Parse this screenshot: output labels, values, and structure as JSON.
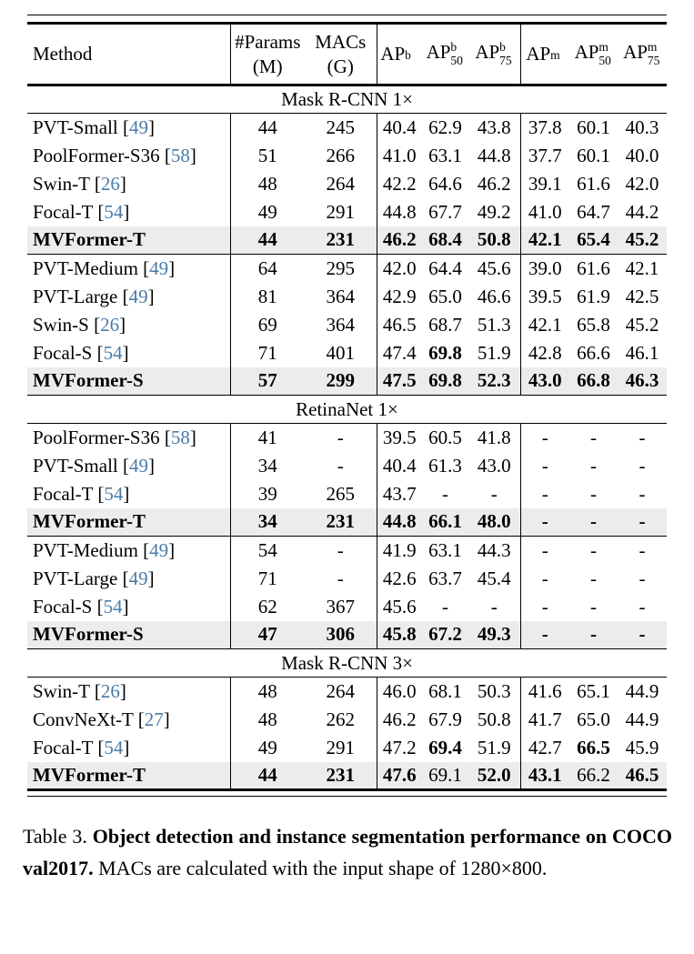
{
  "colors": {
    "citation_blue": "#4a7ba6",
    "highlight_bg": "#ececec",
    "text": "#000000"
  },
  "table": {
    "header": {
      "method": "Method",
      "params_line1": "#Params",
      "params_line2": "(M)",
      "macs_line1": "MACs",
      "macs_line2": "(G)",
      "ap_cols": [
        {
          "base": "AP",
          "sup": "b",
          "sub": ""
        },
        {
          "base": "AP",
          "sup": "b",
          "sub": "50"
        },
        {
          "base": "AP",
          "sup": "b",
          "sub": "75"
        },
        {
          "base": "AP",
          "sup": "m",
          "sub": ""
        },
        {
          "base": "AP",
          "sup": "m",
          "sub": "50"
        },
        {
          "base": "AP",
          "sup": "m",
          "sub": "75"
        }
      ]
    },
    "sections": [
      {
        "title": "Mask R-CNN 1×",
        "groups": [
          {
            "rows": [
              {
                "method": "PVT-Small",
                "ref": "49",
                "shaded": false,
                "bold_method": false,
                "values": [
                  "44",
                  "245",
                  "40.4",
                  "62.9",
                  "43.8",
                  "37.8",
                  "60.1",
                  "40.3"
                ],
                "bold": [
                  0,
                  0,
                  0,
                  0,
                  0,
                  0,
                  0,
                  0
                ]
              },
              {
                "method": "PoolFormer-S36",
                "ref": "58",
                "shaded": false,
                "bold_method": false,
                "values": [
                  "51",
                  "266",
                  "41.0",
                  "63.1",
                  "44.8",
                  "37.7",
                  "60.1",
                  "40.0"
                ],
                "bold": [
                  0,
                  0,
                  0,
                  0,
                  0,
                  0,
                  0,
                  0
                ]
              },
              {
                "method": "Swin-T",
                "ref": "26",
                "shaded": false,
                "bold_method": false,
                "values": [
                  "48",
                  "264",
                  "42.2",
                  "64.6",
                  "46.2",
                  "39.1",
                  "61.6",
                  "42.0"
                ],
                "bold": [
                  0,
                  0,
                  0,
                  0,
                  0,
                  0,
                  0,
                  0
                ]
              },
              {
                "method": "Focal-T",
                "ref": "54",
                "shaded": false,
                "bold_method": false,
                "values": [
                  "49",
                  "291",
                  "44.8",
                  "67.7",
                  "49.2",
                  "41.0",
                  "64.7",
                  "44.2"
                ],
                "bold": [
                  0,
                  0,
                  0,
                  0,
                  0,
                  0,
                  0,
                  0
                ]
              },
              {
                "method": "MVFormer-T",
                "ref": "",
                "shaded": true,
                "bold_method": true,
                "values": [
                  "44",
                  "231",
                  "46.2",
                  "68.4",
                  "50.8",
                  "42.1",
                  "65.4",
                  "45.2"
                ],
                "bold": [
                  1,
                  1,
                  1,
                  1,
                  1,
                  1,
                  1,
                  1
                ]
              }
            ]
          },
          {
            "rows": [
              {
                "method": "PVT-Medium",
                "ref": "49",
                "shaded": false,
                "bold_method": false,
                "values": [
                  "64",
                  "295",
                  "42.0",
                  "64.4",
                  "45.6",
                  "39.0",
                  "61.6",
                  "42.1"
                ],
                "bold": [
                  0,
                  0,
                  0,
                  0,
                  0,
                  0,
                  0,
                  0
                ]
              },
              {
                "method": "PVT-Large",
                "ref": "49",
                "shaded": false,
                "bold_method": false,
                "values": [
                  "81",
                  "364",
                  "42.9",
                  "65.0",
                  "46.6",
                  "39.5",
                  "61.9",
                  "42.5"
                ],
                "bold": [
                  0,
                  0,
                  0,
                  0,
                  0,
                  0,
                  0,
                  0
                ]
              },
              {
                "method": "Swin-S",
                "ref": "26",
                "shaded": false,
                "bold_method": false,
                "values": [
                  "69",
                  "364",
                  "46.5",
                  "68.7",
                  "51.3",
                  "42.1",
                  "65.8",
                  "45.2"
                ],
                "bold": [
                  0,
                  0,
                  0,
                  0,
                  0,
                  0,
                  0,
                  0
                ]
              },
              {
                "method": "Focal-S",
                "ref": "54",
                "shaded": false,
                "bold_method": false,
                "values": [
                  "71",
                  "401",
                  "47.4",
                  "69.8",
                  "51.9",
                  "42.8",
                  "66.6",
                  "46.1"
                ],
                "bold": [
                  0,
                  0,
                  0,
                  1,
                  0,
                  0,
                  0,
                  0
                ]
              },
              {
                "method": "MVFormer-S",
                "ref": "",
                "shaded": true,
                "bold_method": true,
                "values": [
                  "57",
                  "299",
                  "47.5",
                  "69.8",
                  "52.3",
                  "43.0",
                  "66.8",
                  "46.3"
                ],
                "bold": [
                  1,
                  1,
                  1,
                  1,
                  1,
                  1,
                  1,
                  1
                ]
              }
            ]
          }
        ]
      },
      {
        "title": "RetinaNet 1×",
        "groups": [
          {
            "rows": [
              {
                "method": "PoolFormer-S36",
                "ref": "58",
                "shaded": false,
                "bold_method": false,
                "values": [
                  "41",
                  "-",
                  "39.5",
                  "60.5",
                  "41.8",
                  "-",
                  "-",
                  "-"
                ],
                "bold": [
                  0,
                  0,
                  0,
                  0,
                  0,
                  0,
                  0,
                  0
                ]
              },
              {
                "method": "PVT-Small",
                "ref": "49",
                "shaded": false,
                "bold_method": false,
                "values": [
                  "34",
                  "-",
                  "40.4",
                  "61.3",
                  "43.0",
                  "-",
                  "-",
                  "-"
                ],
                "bold": [
                  0,
                  0,
                  0,
                  0,
                  0,
                  0,
                  0,
                  0
                ]
              },
              {
                "method": "Focal-T",
                "ref": "54",
                "shaded": false,
                "bold_method": false,
                "values": [
                  "39",
                  "265",
                  "43.7",
                  "-",
                  "-",
                  "-",
                  "-",
                  "-"
                ],
                "bold": [
                  0,
                  0,
                  0,
                  0,
                  0,
                  0,
                  0,
                  0
                ]
              },
              {
                "method": "MVFormer-T",
                "ref": "",
                "shaded": true,
                "bold_method": true,
                "values": [
                  "34",
                  "231",
                  "44.8",
                  "66.1",
                  "48.0",
                  "-",
                  "-",
                  "-"
                ],
                "bold": [
                  1,
                  1,
                  1,
                  1,
                  1,
                  1,
                  1,
                  1
                ]
              }
            ]
          },
          {
            "rows": [
              {
                "method": "PVT-Medium",
                "ref": "49",
                "shaded": false,
                "bold_method": false,
                "values": [
                  "54",
                  "-",
                  "41.9",
                  "63.1",
                  "44.3",
                  "-",
                  "-",
                  "-"
                ],
                "bold": [
                  0,
                  0,
                  0,
                  0,
                  0,
                  0,
                  0,
                  0
                ]
              },
              {
                "method": "PVT-Large",
                "ref": "49",
                "shaded": false,
                "bold_method": false,
                "values": [
                  "71",
                  "-",
                  "42.6",
                  "63.7",
                  "45.4",
                  "-",
                  "-",
                  "-"
                ],
                "bold": [
                  0,
                  0,
                  0,
                  0,
                  0,
                  0,
                  0,
                  0
                ]
              },
              {
                "method": "Focal-S",
                "ref": "54",
                "shaded": false,
                "bold_method": false,
                "values": [
                  "62",
                  "367",
                  "45.6",
                  "-",
                  "-",
                  "-",
                  "-",
                  "-"
                ],
                "bold": [
                  0,
                  0,
                  0,
                  0,
                  0,
                  0,
                  0,
                  0
                ]
              },
              {
                "method": "MVFormer-S",
                "ref": "",
                "shaded": true,
                "bold_method": true,
                "values": [
                  "47",
                  "306",
                  "45.8",
                  "67.2",
                  "49.3",
                  "-",
                  "-",
                  "-"
                ],
                "bold": [
                  1,
                  1,
                  1,
                  1,
                  1,
                  1,
                  1,
                  1
                ]
              }
            ]
          }
        ]
      },
      {
        "title": "Mask R-CNN 3×",
        "groups": [
          {
            "rows": [
              {
                "method": "Swin-T",
                "ref": "26",
                "shaded": false,
                "bold_method": false,
                "values": [
                  "48",
                  "264",
                  "46.0",
                  "68.1",
                  "50.3",
                  "41.6",
                  "65.1",
                  "44.9"
                ],
                "bold": [
                  0,
                  0,
                  0,
                  0,
                  0,
                  0,
                  0,
                  0
                ]
              },
              {
                "method": "ConvNeXt-T",
                "ref": "27",
                "shaded": false,
                "bold_method": false,
                "values": [
                  "48",
                  "262",
                  "46.2",
                  "67.9",
                  "50.8",
                  "41.7",
                  "65.0",
                  "44.9"
                ],
                "bold": [
                  0,
                  0,
                  0,
                  0,
                  0,
                  0,
                  0,
                  0
                ]
              },
              {
                "method": "Focal-T",
                "ref": "54",
                "shaded": false,
                "bold_method": false,
                "values": [
                  "49",
                  "291",
                  "47.2",
                  "69.4",
                  "51.9",
                  "42.7",
                  "66.5",
                  "45.9"
                ],
                "bold": [
                  0,
                  0,
                  0,
                  1,
                  0,
                  0,
                  1,
                  0
                ]
              },
              {
                "method": "MVFormer-T",
                "ref": "",
                "shaded": true,
                "bold_method": true,
                "values": [
                  "44",
                  "231",
                  "47.6",
                  "69.1",
                  "52.0",
                  "43.1",
                  "66.2",
                  "46.5"
                ],
                "bold": [
                  1,
                  1,
                  1,
                  0,
                  1,
                  1,
                  0,
                  1
                ]
              }
            ]
          }
        ]
      }
    ]
  },
  "caption": {
    "prefix": "Table 3. ",
    "bold": "Object detection and instance segmentation performance on COCO val2017.",
    "rest": " MACs are calculated with the input shape of 1280×800."
  }
}
